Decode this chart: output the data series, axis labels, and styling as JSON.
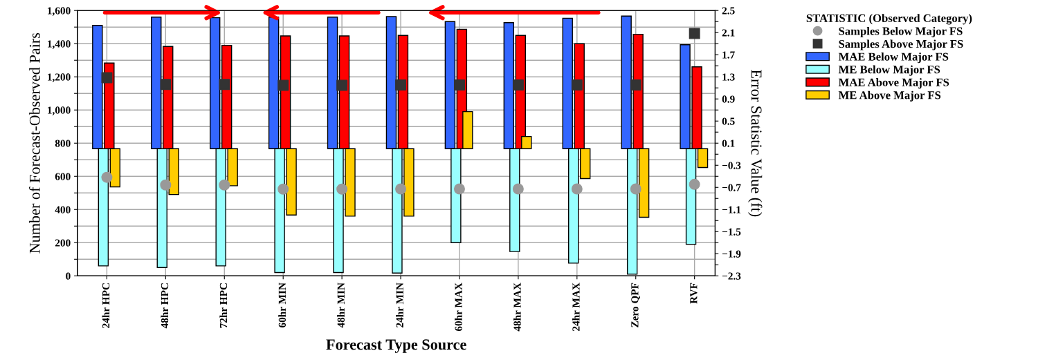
{
  "chart_data": {
    "type": "bar",
    "xlabel": "Forecast Type Source",
    "ylabel": "Number of Forecast-Observed Pairs",
    "y2label": "Error Statistic Value (ft)",
    "legend_title": "STATISTIC (Observed Category)",
    "categories": [
      "24hr HPC",
      "48hr HPC",
      "72hr HPC",
      "60hr MIN",
      "48hr MIN",
      "24hr MIN",
      "60hr MAX",
      "48hr MAX",
      "24hr MAX",
      "Zero QPF",
      "RVF"
    ],
    "series": [
      {
        "name": "Samples Below Major FS",
        "type": "scatter",
        "marker": "circle",
        "color": "#999999",
        "values": [
          594,
          548,
          548,
          523,
          523,
          524,
          524,
          524,
          524,
          524,
          552
        ]
      },
      {
        "name": "Samples Above Major FS",
        "type": "scatter",
        "marker": "square",
        "color": "#333333",
        "values": [
          1195,
          1154,
          1154,
          1149,
          1149,
          1151,
          1151,
          1151,
          1151,
          1151,
          1461
        ]
      },
      {
        "name": "MAE Below Major FS",
        "type": "bar",
        "axis": "y2",
        "color": "#3366ff",
        "values": [
          2.23,
          2.38,
          2.37,
          2.38,
          2.38,
          2.39,
          2.3,
          2.28,
          2.36,
          2.4,
          1.88
        ]
      },
      {
        "name": "ME Below Major FS",
        "type": "bar",
        "axis": "y2",
        "color": "#99ffff",
        "values": [
          -2.12,
          -2.15,
          -2.12,
          -2.24,
          -2.24,
          -2.25,
          -1.7,
          -1.86,
          -2.07,
          -2.27,
          -1.73
        ]
      },
      {
        "name": "MAE Above Major FS",
        "type": "bar",
        "axis": "y2",
        "color": "#ff0000",
        "values": [
          1.55,
          1.85,
          1.87,
          2.04,
          2.04,
          2.05,
          2.16,
          2.05,
          1.9,
          2.07,
          1.48
        ]
      },
      {
        "name": "ME Above Major FS",
        "type": "bar",
        "axis": "y2",
        "color": "#ffcc00",
        "values": [
          -0.69,
          -0.83,
          -0.67,
          -1.2,
          -1.22,
          -1.22,
          0.67,
          0.22,
          -0.54,
          -1.24,
          -0.34
        ]
      }
    ],
    "ylim": [
      0,
      1600
    ],
    "yticks": [
      0,
      {
        "value": 100,
        "label": null
      },
      {
        "value": 200,
        "label": "200"
      },
      {
        "value": 300,
        "label": null
      },
      {
        "value": 400,
        "label": "400"
      },
      {
        "value": 500,
        "label": null
      },
      {
        "value": 600,
        "label": "600"
      },
      {
        "value": 700,
        "label": null
      },
      {
        "value": 800,
        "label": "800"
      },
      {
        "value": 900,
        "label": null
      },
      {
        "value": 1000,
        "label": "1,000"
      },
      {
        "value": 1100,
        "label": null
      },
      {
        "value": 1200,
        "label": "1,200"
      },
      {
        "value": 1300,
        "label": null
      },
      {
        "value": 1400,
        "label": "1,400"
      },
      {
        "value": 1500,
        "label": null
      },
      {
        "value": 1600,
        "label": "1,600"
      }
    ],
    "y2lim": [
      -2.3,
      2.5
    ],
    "y2ticks": [
      {
        "value": -2.3,
        "label": "−2.3"
      },
      {
        "value": -2.1,
        "label": null
      },
      {
        "value": -1.9,
        "label": "−1.9"
      },
      {
        "value": -1.7,
        "label": null
      },
      {
        "value": -1.5,
        "label": "−1.5"
      },
      {
        "value": -1.3,
        "label": null
      },
      {
        "value": -1.1,
        "label": "−1.1"
      },
      {
        "value": -0.9,
        "label": null
      },
      {
        "value": -0.7,
        "label": "−0.7"
      },
      {
        "value": -0.5,
        "label": null
      },
      {
        "value": -0.3,
        "label": "−0.3"
      },
      {
        "value": -0.1,
        "label": null
      },
      0.1,
      {
        "value": 0.3,
        "label": null
      },
      0.5,
      {
        "value": 0.7,
        "label": null
      },
      0.9,
      {
        "value": 1.1,
        "label": null
      },
      1.3,
      {
        "value": 1.5,
        "label": null
      },
      1.7,
      {
        "value": 1.9,
        "label": null
      },
      2.1,
      {
        "value": 2.3,
        "label": null
      },
      2.5
    ],
    "grid": true,
    "legend": "top right"
  }
}
